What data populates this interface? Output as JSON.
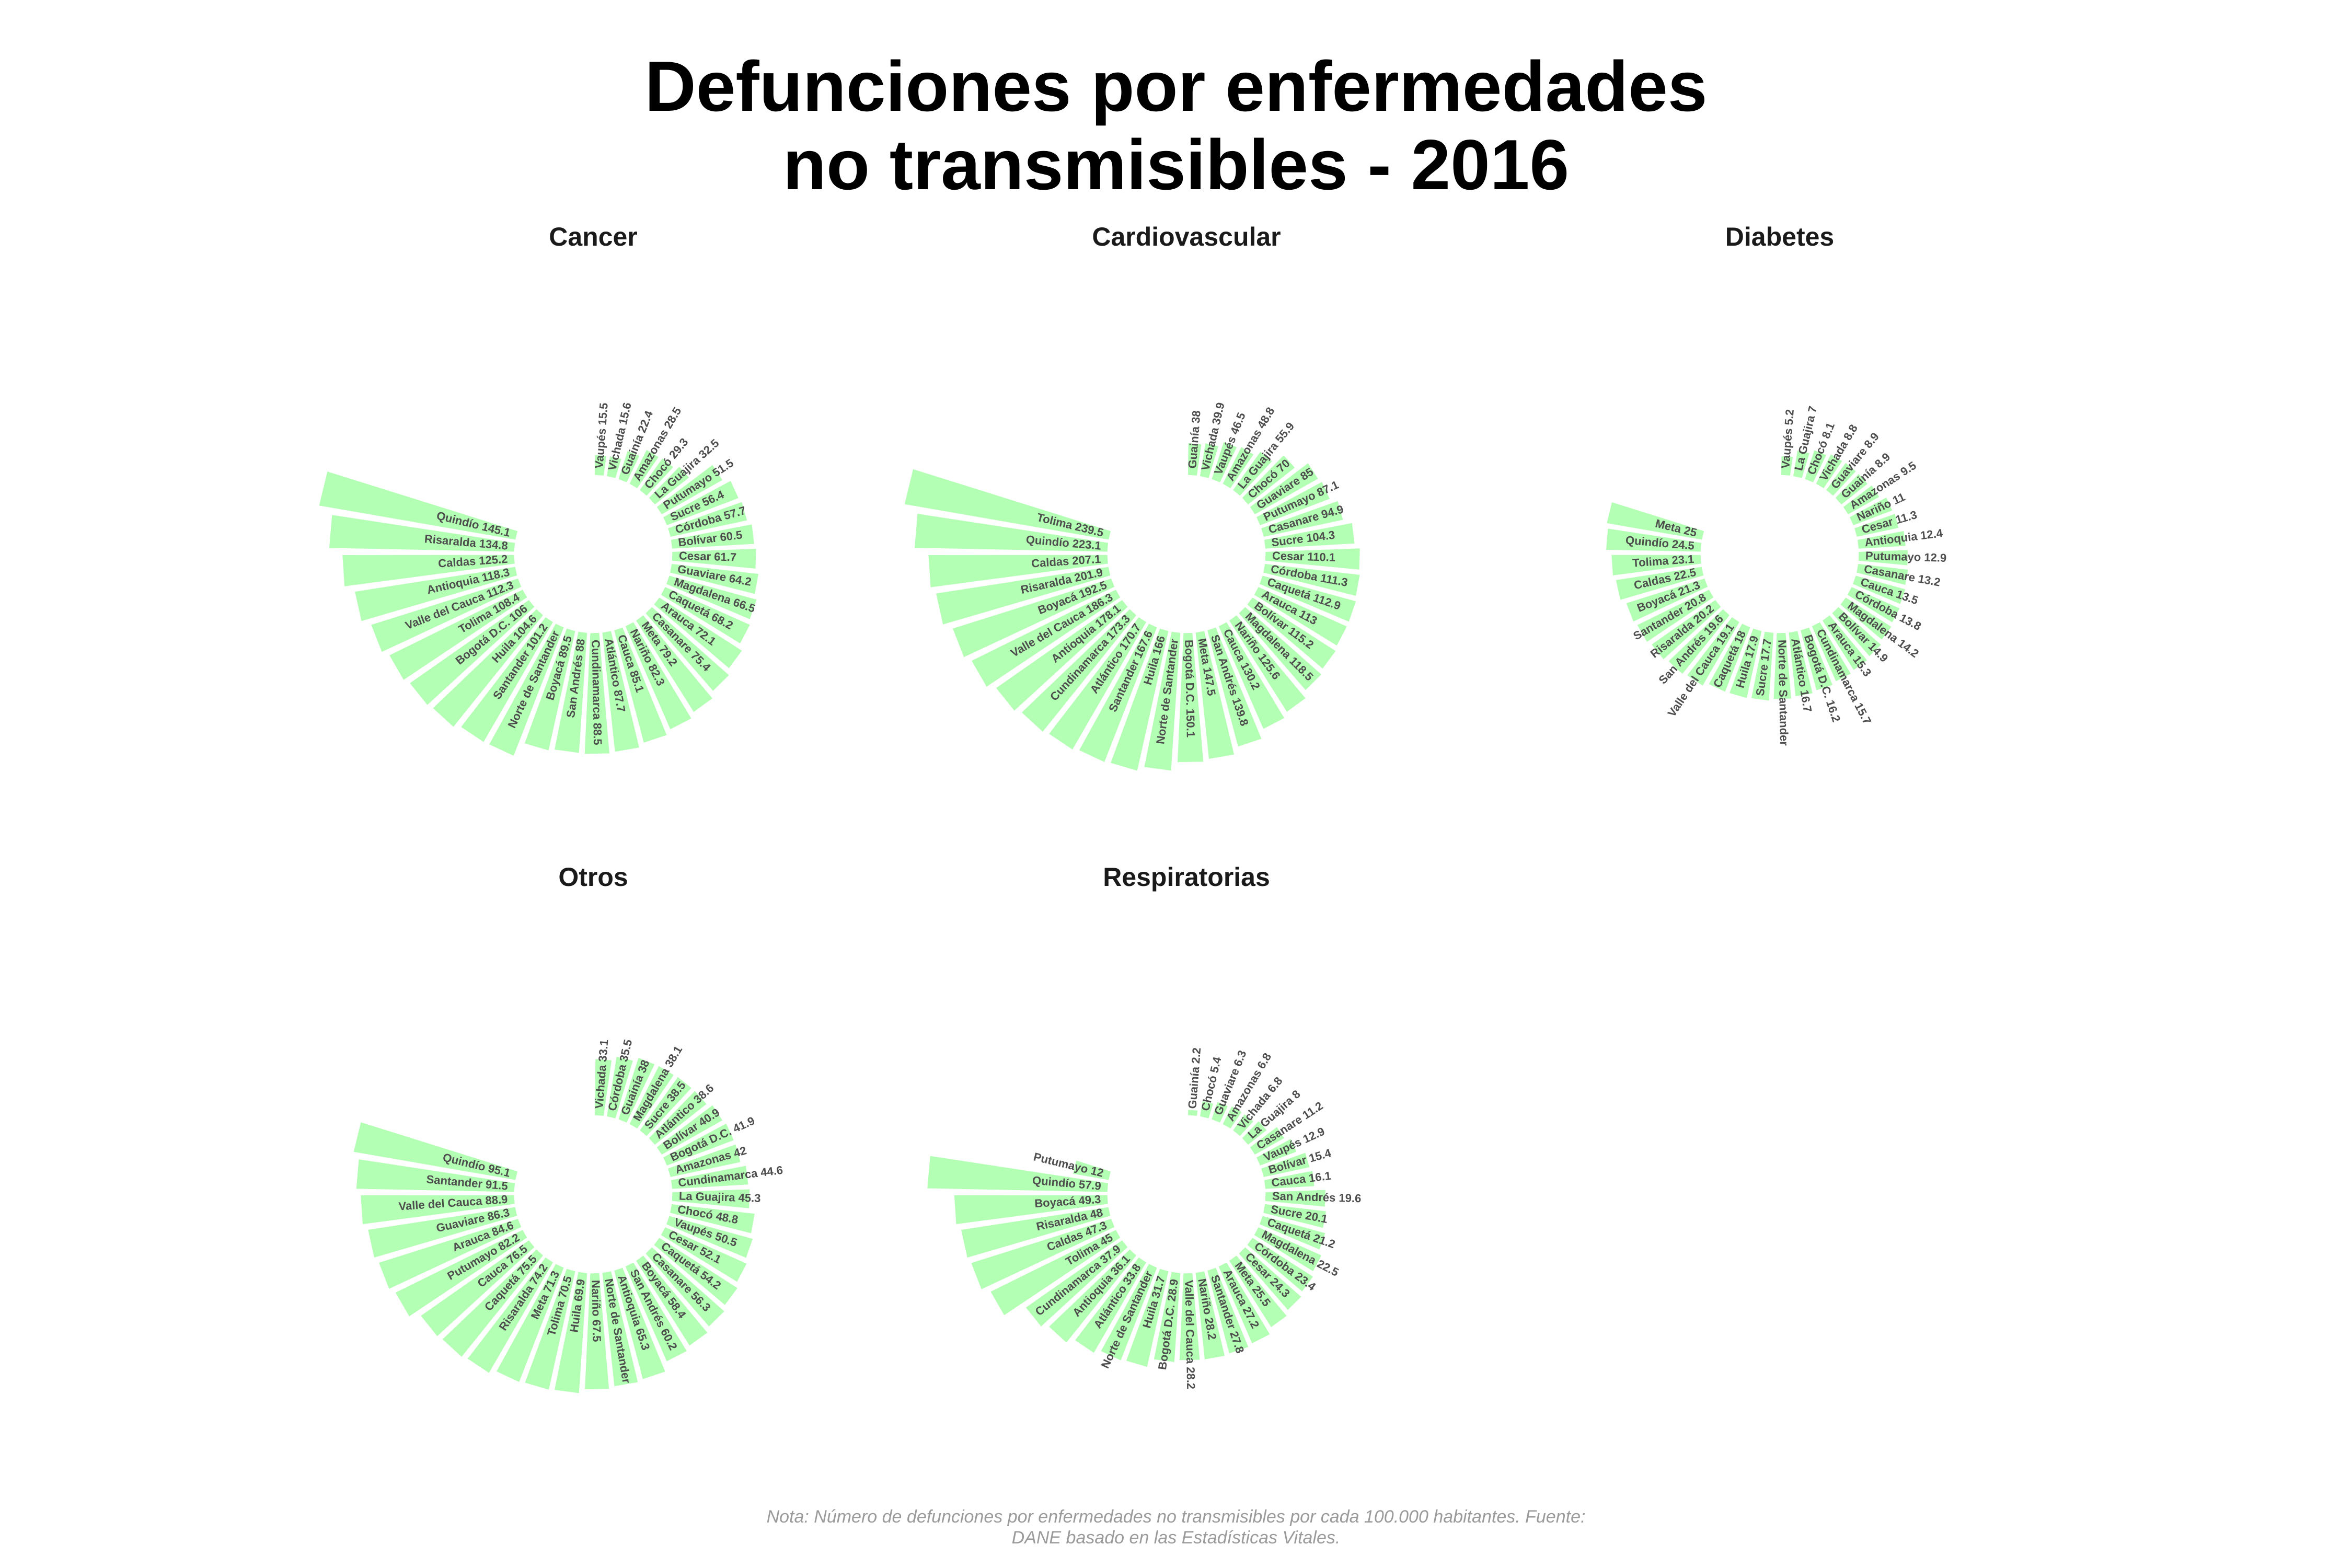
{
  "title": {
    "line1": "Defunciones por enfermedades",
    "line2": "no transmisibles - 2016"
  },
  "note": {
    "line1": "Nota: Número de defunciones por enfermedades no transmisibles por cada 100.000 habitantes. Fuente:",
    "line2": "DANE basado en las Estadísticas Vitales."
  },
  "colors": {
    "bar": "#b3ffb3",
    "bar_stroke": "#ffffff",
    "label": "#4d4d4d",
    "title": "#000000",
    "panel_title": "#1a1a1a",
    "note": "#9a9a9a"
  },
  "chart_data": [
    {
      "type": "bar",
      "polar": true,
      "title": "Cancer",
      "scale_max": 170,
      "categories": [
        "Vaupés",
        "Vichada",
        "Guainía",
        "Amazonas",
        "Chocó",
        "La Guajira",
        "Putumayo",
        "Sucre",
        "Córdoba",
        "Bolívar",
        "Cesar",
        "Guaviare",
        "Magdalena",
        "Caquetá",
        "Arauca",
        "Casanare",
        "Meta",
        "Nariño",
        "Cauca",
        "Atlántico",
        "Cundinamarca",
        "San Andrés",
        "Boyacá",
        "Norte de Santander",
        "Santander",
        "Huila",
        "Bogotá D.C.",
        "Tolima",
        "Valle del Cauca",
        "Antioquia",
        "Caldas",
        "Risaralda",
        "Quindío"
      ],
      "values": [
        15.5,
        15.6,
        22.4,
        28.5,
        29.3,
        32.5,
        51.5,
        56.4,
        57.7,
        60.5,
        61.7,
        64.2,
        66.5,
        68.2,
        72.1,
        75.4,
        79.2,
        82.3,
        85.1,
        87.7,
        88.5,
        88,
        89.5,
        100.7,
        101.2,
        104.6,
        106,
        108.4,
        112.3,
        118.3,
        125.2,
        134.8,
        145.1
      ],
      "labels": [
        "Vaupés 15.5",
        "Vichada 15.6",
        "Guainía 22.4",
        "Amazonas 28.5",
        "Chocó 29.3",
        "La Guajira 32.5",
        "Putumayo 51.5",
        "Sucre 56.4",
        "Córdoba 57.7",
        "Bolívar 60.5",
        "Cesar 61.7",
        "Guaviare 64.2",
        "Magdalena 66.5",
        "Caquetá 68.2",
        "Arauca 72.1",
        "Casanare 75.4",
        "Meta 79.2",
        "Nariño 82.3",
        "Cauca 85.1",
        "Atlántico 87.7",
        "Cundinamarca 88.5",
        "San Andrés 88",
        "Boyacá 89.5",
        "Norte de Santander",
        "Santander 101.2",
        "Huila 104.6",
        "Bogotá D.C. 106",
        "Tolima 108.4",
        "Valle del Cauca 112.3",
        "Antioquia 118.3",
        "Caldas 125.2",
        "Risaralda 134.8",
        "Quindío 145.1"
      ]
    },
    {
      "type": "bar",
      "polar": true,
      "title": "Cardiovascular",
      "scale_max": 270,
      "categories": [
        "Guainía",
        "Vichada",
        "Vaupés",
        "Amazonas",
        "La Guajira",
        "Chocó",
        "Guaviare",
        "Putumayo",
        "Casanare",
        "Sucre",
        "Cesar",
        "Córdoba",
        "Caquetá",
        "Arauca",
        "Bolívar",
        "Magdalena",
        "Nariño",
        "Cauca",
        "San Andrés",
        "Meta",
        "Bogotá D.C.",
        "Norte de Santander",
        "Huila",
        "Santander",
        "Atlántico",
        "Cundinamarca",
        "Antioquia",
        "Valle del Cauca",
        "Boyacá",
        "Risaralda",
        "Caldas",
        "Quindío",
        "Tolima"
      ],
      "values": [
        38,
        39.9,
        46.5,
        48.8,
        55.9,
        70,
        85,
        87.1,
        94.9,
        104.3,
        110.1,
        111.3,
        112.9,
        113,
        115.2,
        118.5,
        125.6,
        130.2,
        139.8,
        147.5,
        150.1,
        160.2,
        166,
        167.6,
        170.7,
        173.3,
        178.1,
        186.3,
        192.5,
        201.9,
        207.1,
        223.1,
        239.5
      ],
      "labels": [
        "Guainía 38",
        "Vichada 39.9",
        "Vaupés 46.5",
        "Amazonas 48.8",
        "La Guajira 55.9",
        "Chocó 70",
        "Guaviare 85",
        "Putumayo 87.1",
        "Casanare 94.9",
        "Sucre 104.3",
        "Cesar 110.1",
        "Córdoba 111.3",
        "Caquetá 112.9",
        "Arauca 113",
        "Bolívar 115.2",
        "Magdalena 118.5",
        "Nariño 125.6",
        "Cauca 130.2",
        "San Andrés 139.8",
        "Meta 147.5",
        "Bogotá D.C. 150.1",
        "Norte de Santander",
        "Huila 166",
        "Santander 167.6",
        "Atlántico 170.7",
        "Cundinamarca 173.3",
        "Antioquia 178.1",
        "Valle del Cauca 186.3",
        "Boyacá 192.5",
        "Risaralda 201.9",
        "Caldas 207.1",
        "Quindío 223.1",
        "Tolima 239.5"
      ]
    },
    {
      "type": "bar",
      "polar": true,
      "title": "Diabetes",
      "scale_max": 60,
      "categories": [
        "Vaupés",
        "La Guajira",
        "Chocó",
        "Vichada",
        "Guaviare",
        "Guainía",
        "Amazonas",
        "Nariño",
        "Cesar",
        "Antioquia",
        "Putumayo",
        "Casanare",
        "Cauca",
        "Córdoba",
        "Magdalena",
        "Bolívar",
        "Arauca",
        "Cundinamarca",
        "Bogotá D.C.",
        "Atlántico",
        "Norte de Santander",
        "Sucre",
        "Huila",
        "Caquetá",
        "Valle del Cauca",
        "San Andrés",
        "Risaralda",
        "Santander",
        "Boyacá",
        "Caldas",
        "Tolima",
        "Quindío",
        "Meta"
      ],
      "values": [
        5.2,
        7,
        8.1,
        8.8,
        8.9,
        8.9,
        9.5,
        11,
        11.3,
        12.4,
        12.9,
        13.2,
        13.5,
        13.8,
        14.2,
        14.9,
        15.3,
        15.7,
        16.2,
        16.7,
        17.2,
        17.7,
        17.9,
        18,
        19.1,
        19.6,
        20.2,
        20.8,
        21.3,
        22.5,
        23.1,
        24.5,
        25
      ],
      "labels": [
        "Vaupés 5.2",
        "La Guajira 7",
        "Chocó 8.1",
        "Vichada 8.8",
        "Guaviare 8.9",
        "Guainía 8.9",
        "Amazonas 9.5",
        "Nariño 11",
        "Cesar 11.3",
        "Antioquia 12.4",
        "Putumayo 12.9",
        "Casanare 13.2",
        "Cauca 13.5",
        "Córdoba 13.8",
        "Magdalena 14.2",
        "Bolívar 14.9",
        "Arauca 15.3",
        "Cundinamarca 15.7",
        "Bogotá D.C. 16.2",
        "Atlántico 16.7",
        "Norte de Santander",
        "Sucre 17.7",
        "Huila 17.9",
        "Caquetá 18",
        "Valle del Cauca 19.1",
        "San Andrés 19.6",
        "Risaralda 20.2",
        "Santander 20.8",
        "Boyacá 21.3",
        "Caldas 22.5",
        "Tolima 23.1",
        "Quindío 24.5",
        "Meta 25"
      ]
    },
    {
      "type": "bar",
      "polar": true,
      "title": "Otros",
      "scale_max": 135,
      "categories": [
        "Vichada",
        "Córdoba",
        "Guainía",
        "Magdalena",
        "Sucre",
        "Atlántico",
        "Bolívar",
        "Bogotá D.C.",
        "Amazonas",
        "Cundinamarca",
        "La Guajira",
        "Chocó",
        "Vaupés",
        "Cesar",
        "Caquetá",
        "Casanare",
        "Boyacá",
        "San Andrés",
        "Antioquia",
        "Norte de Santander",
        "Nariño",
        "Huila",
        "Tolima",
        "Meta",
        "Risaralda",
        "Caquetá",
        "Cauca",
        "Putumayo",
        "Arauca",
        "Guaviare",
        "Valle del Cauca",
        "Santander",
        "Quindío"
      ],
      "values": [
        33.1,
        35.5,
        38,
        38.1,
        38.5,
        38.6,
        40.9,
        41.9,
        42,
        44.6,
        45.3,
        48.8,
        50.5,
        52.1,
        54.2,
        56.3,
        58.4,
        60.2,
        65.3,
        66.3,
        67.5,
        69.9,
        70.5,
        71.3,
        74.2,
        75.5,
        76.5,
        82.2,
        84.6,
        86.3,
        88.9,
        91.5,
        95.1
      ],
      "labels": [
        "Vichada 33.1",
        "Córdoba 35.5",
        "Guainía 38",
        "Magdalena 38.1",
        "Sucre 38.5",
        "Atlántico 38.6",
        "Bolívar 40.9",
        "Bogotá D.C. 41.9",
        "Amazonas 42",
        "Cundinamarca 44.6",
        "La Guajira 45.3",
        "Chocó 48.8",
        "Vaupés 50.5",
        "Cesar 52.1",
        "Caquetá 54.2",
        "Casanare 56.3",
        "Boyacá 58.4",
        "San Andrés 60.2",
        "Antioquia 65.3",
        "Norte de Santander",
        "Nariño 67.5",
        "Huila 69.9",
        "Tolima 70.5",
        "Meta 71.3",
        "Risaralda 74.2",
        "Caquetá 75.5",
        "Cauca 76.5",
        "Putumayo 82.2",
        "Arauca 84.6",
        "Guaviare 86.3",
        "Valle del Cauca 88.9",
        "Santander 91.5",
        "Quindío 95.1"
      ]
    },
    {
      "type": "bar",
      "polar": true,
      "title": "Respiratorias",
      "scale_max": 75,
      "categories": [
        "Guainía",
        "Chocó",
        "Guaviare",
        "Amazonas",
        "Vichada",
        "La Guajira",
        "Casanare",
        "Vaupés",
        "Bolívar",
        "Cauca",
        "San Andrés",
        "Sucre",
        "Caquetá",
        "Magdalena",
        "Córdoba",
        "Cesar",
        "Meta",
        "Arauca",
        "Santander",
        "Nariño",
        "Valle del Cauca",
        "Bogotá D.C.",
        "Huila",
        "Norte de Santander",
        "Atlántico",
        "Antioquia",
        "Cundinamarca",
        "Tolima",
        "Caldas",
        "Risaralda",
        "Boyacá",
        "Quindío",
        "Putumayo"
      ],
      "values": [
        2.2,
        5.4,
        6.3,
        6.8,
        6.8,
        8,
        11.2,
        12.9,
        15.4,
        16.1,
        19.6,
        20.1,
        21.2,
        22.5,
        23.4,
        24.3,
        25.5,
        27.2,
        27.8,
        28.2,
        28.2,
        28.9,
        31.7,
        32.2,
        33.8,
        36.1,
        37.9,
        45,
        47.3,
        48,
        49.3,
        57.9,
        12
      ],
      "labels": [
        "Guainía 2.2",
        "Chocó 5.4",
        "Guaviare 6.3",
        "Amazonas 6.8",
        "Vichada 6.8",
        "La Guajira 8",
        "Casanare 11.2",
        "Vaupés 12.9",
        "Bolívar 15.4",
        "Cauca 16.1",
        "San Andrés 19.6",
        "Sucre 20.1",
        "Caquetá 21.2",
        "Magdalena 22.5",
        "Córdoba 23.4",
        "Cesar 24.3",
        "Meta 25.5",
        "Arauca 27.2",
        "Santander 27.8",
        "Nariño 28.2",
        "Valle del Cauca 28.2",
        "Bogotá D.C. 28.9",
        "Huila 31.7",
        "Norte de Santander",
        "Atlántico 33.8",
        "Antioquia 36.1",
        "Cundinamarca 37.9",
        "Tolima 45",
        "Caldas 47.3",
        "Risaralda 48",
        "Boyacá 49.3",
        "Quindío 57.9",
        "Putumayo 12"
      ]
    }
  ]
}
